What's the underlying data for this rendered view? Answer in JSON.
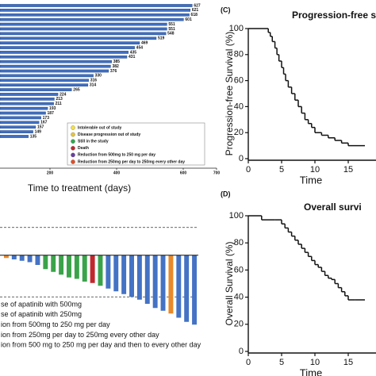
{
  "chart_data": [
    {
      "type": "barh",
      "xlabel": "Time to treatment (days)",
      "values": [
        627,
        621,
        618,
        601,
        551,
        551,
        548,
        519,
        469,
        454,
        435,
        431,
        385,
        382,
        376,
        330,
        316,
        314,
        265,
        224,
        213,
        211,
        193,
        187,
        173,
        167,
        157,
        149,
        135
      ],
      "color": "#3f6fc2",
      "xlim": [
        50,
        700
      ],
      "xticks": [
        200,
        400,
        600,
        700
      ],
      "legend": [
        {
          "label": "Intolerable out of study",
          "color": "#f2e04a"
        },
        {
          "label": "Disease progression out of study",
          "color": "#e8c53a"
        },
        {
          "label": "Still in the study",
          "color": "#2fa84f"
        },
        {
          "label": "Death",
          "color": "#c0282d"
        },
        {
          "label": "Reduction from 500mg to 250 mg per day",
          "color": "#6a3fa0"
        },
        {
          "label": "Reduction from 250mg per day to 250mg every other day",
          "color": "#e0502a"
        }
      ]
    },
    {
      "type": "step",
      "panel": "(C)",
      "title": "Progression-free s",
      "xlabel": "Time",
      "ylabel": "Progression-free Survival (%)",
      "x": [
        0,
        3,
        3.3,
        3.6,
        4,
        4.3,
        4.6,
        5,
        5.3,
        5.6,
        6,
        6.5,
        7,
        7.5,
        8,
        8.5,
        9,
        9.5,
        10,
        11,
        12,
        13,
        14,
        15,
        17.5
      ],
      "values": [
        100,
        97,
        94,
        90,
        85,
        80,
        75,
        70,
        65,
        60,
        55,
        50,
        45,
        40,
        35,
        30,
        27,
        24,
        20,
        18,
        16,
        14,
        12,
        10,
        10
      ],
      "xlim": [
        0,
        20
      ],
      "xticks": [
        0,
        5,
        10,
        15
      ],
      "ylim": [
        0,
        100
      ],
      "yticks": [
        0,
        20,
        40,
        60,
        80,
        100
      ]
    },
    {
      "type": "step",
      "panel": "(D)",
      "title": "Overall survi",
      "xlabel": "Time",
      "ylabel": "Overall  Survival (%)",
      "x": [
        0,
        2,
        4,
        5,
        5.5,
        6,
        6.5,
        7,
        7.5,
        8,
        8.5,
        9,
        9.5,
        10,
        10.5,
        11,
        11.5,
        12,
        12.5,
        13,
        13.5,
        14,
        14.5,
        15,
        16,
        17.5
      ],
      "values": [
        100,
        97,
        97,
        94,
        91,
        88,
        85,
        82,
        79,
        76,
        73,
        70,
        67,
        64,
        62,
        59,
        56,
        54,
        53,
        50,
        47,
        44,
        41,
        38,
        38,
        38
      ],
      "xlim": [
        0,
        20
      ],
      "xticks": [
        0,
        5,
        10,
        15
      ],
      "ylim": [
        0,
        100
      ],
      "yticks": [
        0,
        20,
        40,
        60,
        80,
        100
      ]
    },
    {
      "type": "bar",
      "values": [
        -2,
        -3,
        -4,
        -5,
        -7,
        -10,
        -12,
        -14,
        -16,
        -17,
        -19,
        -20,
        -22,
        -24,
        -26,
        -28,
        -30,
        -32,
        -35,
        -38,
        -40,
        -42,
        -45,
        -48,
        -50
      ],
      "colors": [
        "#e8892a",
        "#4472c4",
        "#4472c4",
        "#4472c4",
        "#4472c4",
        "#3aa34a",
        "#3aa34a",
        "#3aa34a",
        "#3aa34a",
        "#3aa34a",
        "#3aa34a",
        "#c0282d",
        "#3aa34a",
        "#4472c4",
        "#4472c4",
        "#4472c4",
        "#4472c4",
        "#4472c4",
        "#4472c4",
        "#4472c4",
        "#4472c4",
        "#e8892a",
        "#4472c4",
        "#4472c4",
        "#4472c4"
      ],
      "ylim": [
        -55,
        25
      ],
      "reference_lines": [
        20,
        -30
      ],
      "legend": [
        "se of apatinib with 500mg",
        "se of apatinib with 250mg",
        "ion from 500mg to 250 mg per day",
        "ion from 250mg per day to 250mg every other day",
        "ion from 500 mg to 250 mg per day and then to every other day"
      ]
    }
  ]
}
